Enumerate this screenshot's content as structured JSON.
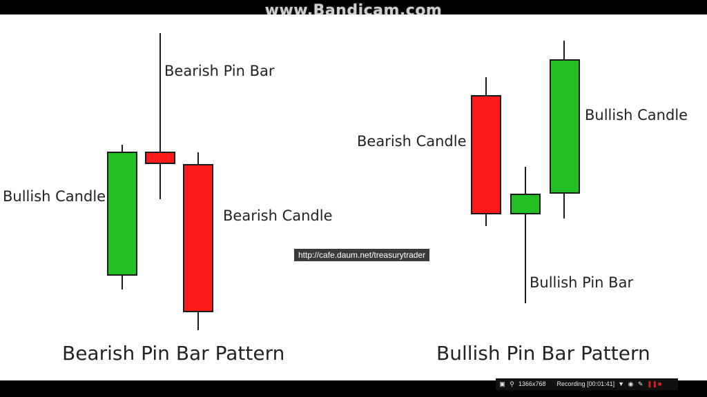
{
  "watermark": "www.Bandicam.com",
  "diagram": {
    "colors": {
      "bullish": "#22c022",
      "bearish": "#ff1a1a",
      "wick": "#1a1a1a"
    },
    "bearish_pattern": {
      "title": "Bearish Pin Bar Pattern",
      "labels": {
        "bullish_candle": "Bullish Candle",
        "pin_bar": "Bearish Pin Bar",
        "bearish_candle": "Bearish Candle"
      }
    },
    "bullish_pattern": {
      "title": "Bullish Pin Bar Pattern",
      "labels": {
        "bearish_candle": "Bearish Candle",
        "pin_bar": "Bullish Pin Bar",
        "bullish_candle": "Bullish Candle"
      }
    }
  },
  "overlay_url": "http://cafe.daum.net/treasurytrader",
  "recording_bar": {
    "resolution": "1366x768",
    "status": "Recording [00:01:41]",
    "icons": [
      "window-icon",
      "magnifier-icon",
      "dropdown-icon",
      "camera-icon",
      "pencil-icon",
      "pause-icon",
      "stop-icon"
    ]
  }
}
